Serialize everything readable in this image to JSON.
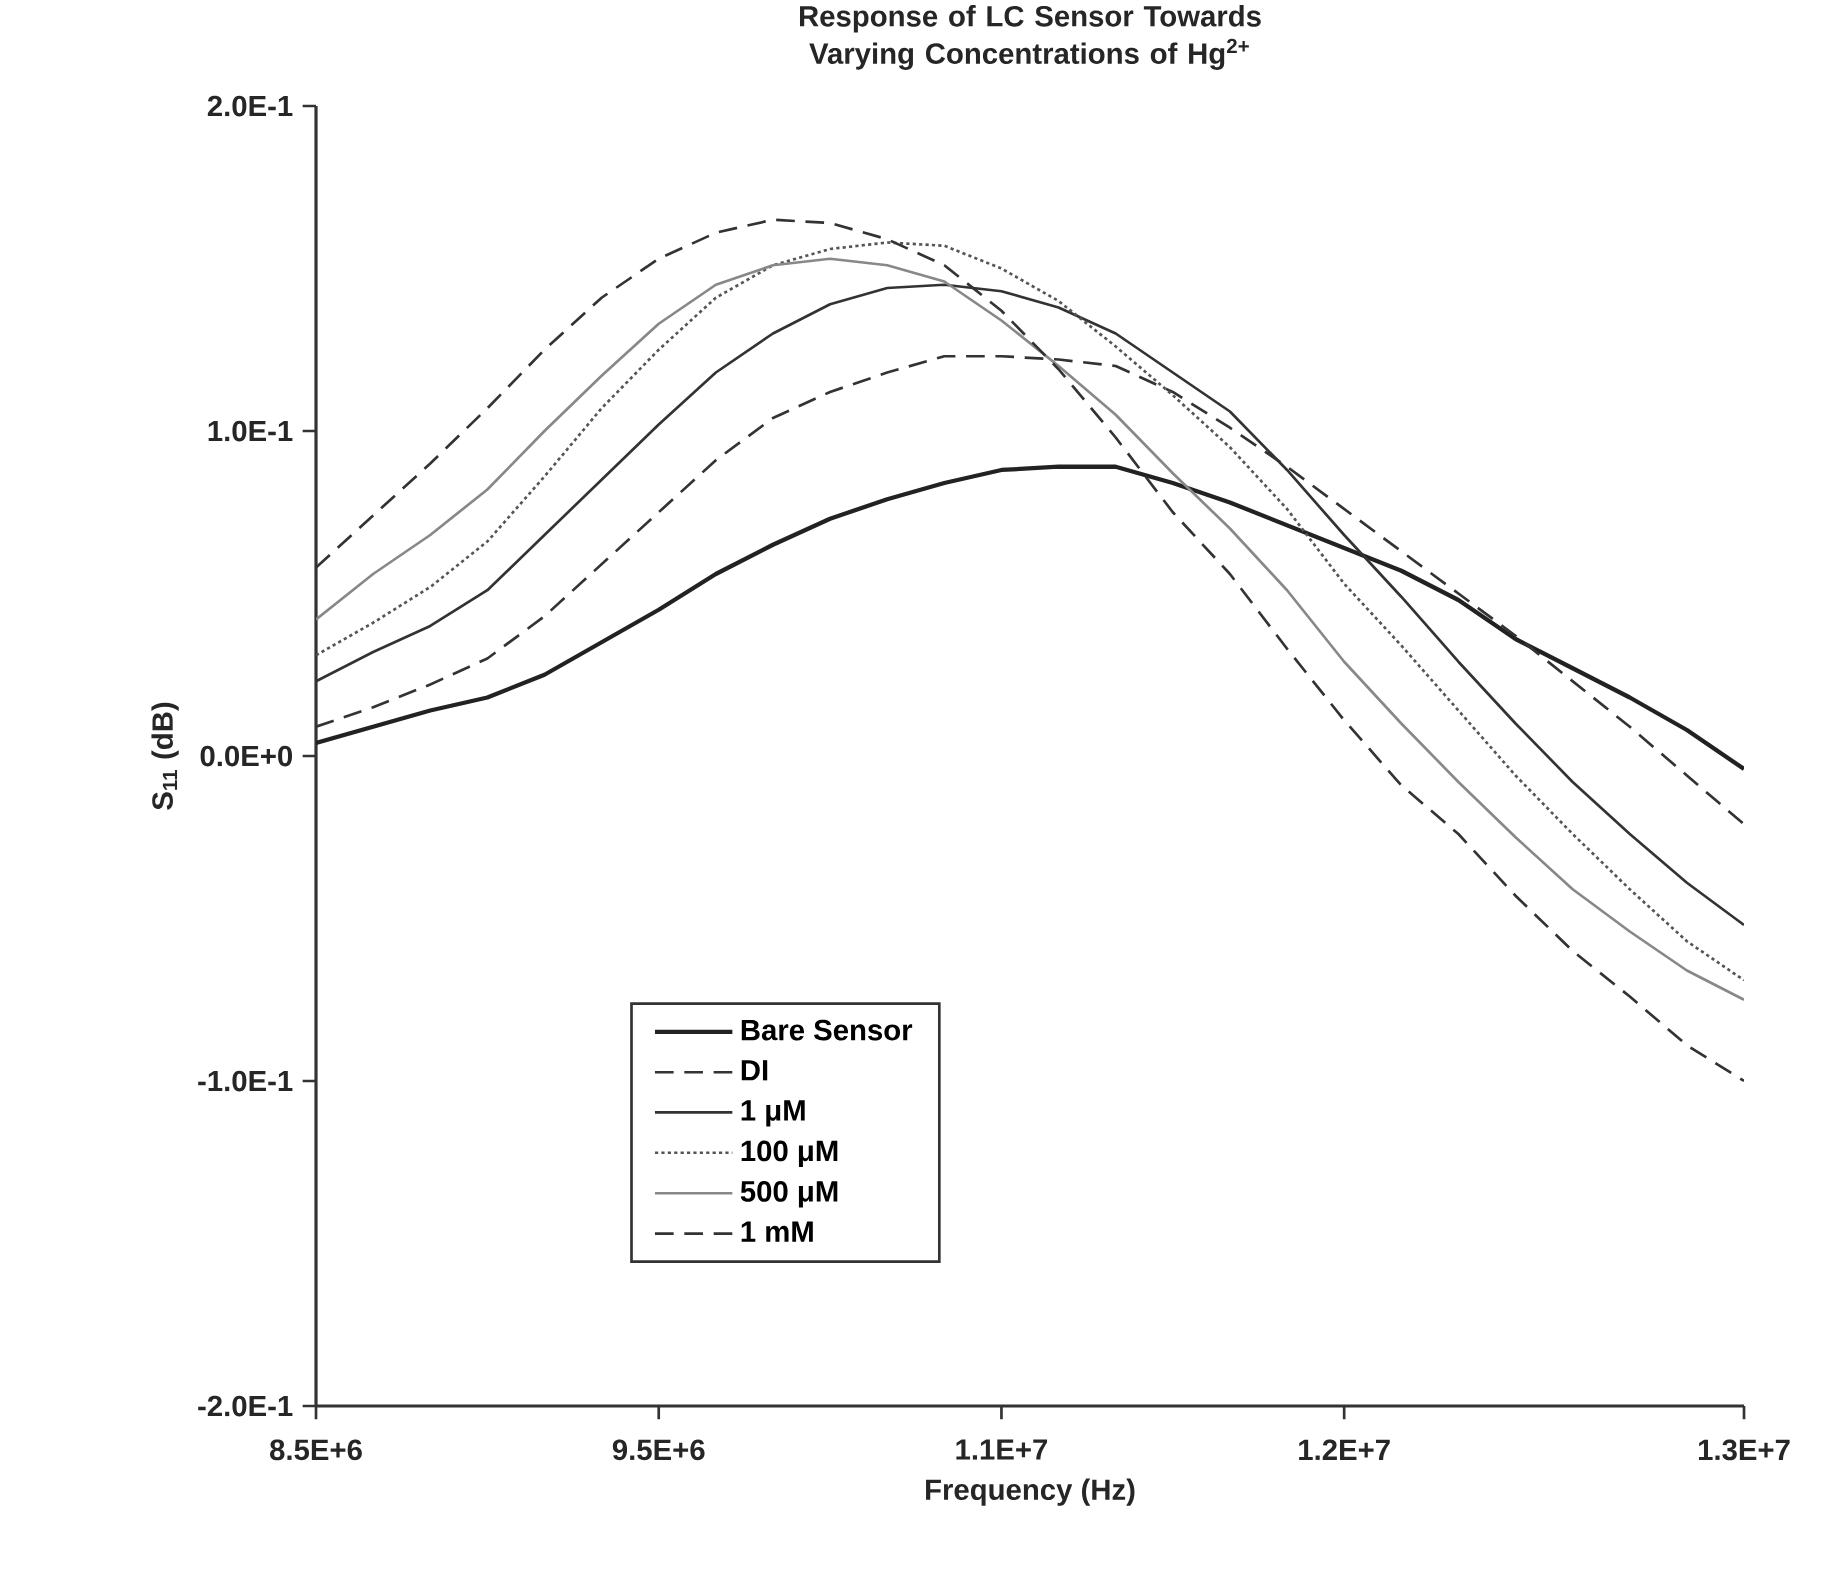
{
  "chart_data": {
    "type": "line",
    "title": "Response of LC Sensor Towards Varying Concentrations of Hg$^{2+}$",
    "xlabel": "Frequency (Hz)",
    "ylabel": "S$_{11}$ (dB)",
    "categories": [
      "8.5E+6",
      null,
      null,
      null,
      null,
      null,
      "9.5E+6",
      null,
      null,
      null,
      null,
      null,
      "1.1E+7",
      null,
      null,
      null,
      null,
      null,
      "1.2E+7",
      null,
      null,
      null,
      null,
      null,
      null,
      "1.3E+7"
    ],
    "ylim": [
      -0.2,
      0.2
    ],
    "yticks": [
      {
        "value": -0.2,
        "label": "-2.0E-1"
      },
      {
        "value": -0.1,
        "label": "-1.0E-1"
      },
      {
        "value": 0,
        "label": "0.0E+0"
      },
      {
        "value": 0.1,
        "label": "1.0E-1"
      },
      {
        "value": 0.2,
        "label": "2.0E-1"
      }
    ],
    "legend": "bottom left",
    "grid": false,
    "marker": "none",
    "series": [
      {
        "name": "Bare Sensor",
        "color": "#222222",
        "line_style": "solid",
        "values": [
          0.004,
          0.009,
          0.014,
          0.018,
          0.025,
          0.035,
          0.045,
          0.056,
          0.065,
          0.073,
          0.079,
          0.084,
          0.088,
          0.089,
          0.089,
          0.084,
          0.078,
          0.071,
          0.064,
          0.057,
          0.048,
          0.036,
          0.027,
          0.018,
          0.008,
          -0.004
        ]
      },
      {
        "name": "DI",
        "color": "#333333",
        "line_style": "dashed",
        "values": [
          0.009,
          0.015,
          0.022,
          0.03,
          0.043,
          0.059,
          0.075,
          0.091,
          0.104,
          0.112,
          0.118,
          0.123,
          0.123,
          0.122,
          0.12,
          0.112,
          0.101,
          0.089,
          0.076,
          0.063,
          0.05,
          0.037,
          0.023,
          0.009,
          -0.006,
          -0.021
        ]
      },
      {
        "name": "1 μM",
        "color": "#333333",
        "line_style": "solid",
        "values": [
          0.023,
          0.032,
          0.04,
          0.051,
          0.068,
          0.085,
          0.102,
          0.118,
          0.13,
          0.139,
          0.144,
          0.145,
          0.143,
          0.138,
          0.13,
          0.118,
          0.106,
          0.088,
          0.068,
          0.049,
          0.029,
          0.01,
          -0.008,
          -0.024,
          -0.039,
          -0.052
        ]
      },
      {
        "name": "100 μM",
        "color": "#555555",
        "line_style": "dotted",
        "values": [
          0.031,
          0.041,
          0.052,
          0.066,
          0.086,
          0.107,
          0.125,
          0.141,
          0.151,
          0.156,
          0.158,
          0.157,
          0.15,
          0.14,
          0.126,
          0.111,
          0.095,
          0.076,
          0.053,
          0.034,
          0.014,
          -0.006,
          -0.024,
          -0.041,
          -0.057,
          -0.069
        ]
      },
      {
        "name": "500 μM",
        "color": "#888888",
        "line_style": "solid",
        "values": [
          0.042,
          0.056,
          0.068,
          0.082,
          0.1,
          0.117,
          0.133,
          0.145,
          0.151,
          0.153,
          0.151,
          0.146,
          0.134,
          0.12,
          0.105,
          0.087,
          0.07,
          0.051,
          0.029,
          0.01,
          -0.008,
          -0.025,
          -0.041,
          -0.054,
          -0.066,
          -0.075
        ]
      },
      {
        "name": "1 mM",
        "color": "#333333",
        "line_style": "dashed",
        "values": [
          0.058,
          0.074,
          0.09,
          0.107,
          0.125,
          0.141,
          0.153,
          0.161,
          0.165,
          0.164,
          0.159,
          0.151,
          0.137,
          0.119,
          0.098,
          0.075,
          0.056,
          0.033,
          0.011,
          -0.009,
          -0.024,
          -0.043,
          -0.06,
          -0.074,
          -0.089,
          -0.1
        ]
      }
    ]
  }
}
